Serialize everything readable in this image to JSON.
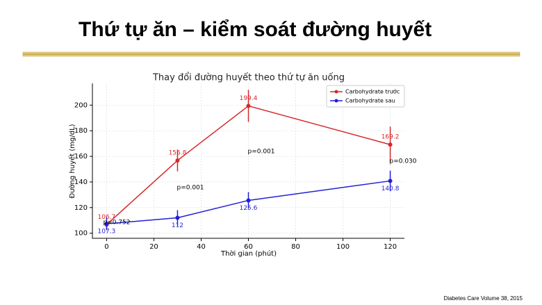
{
  "slide": {
    "title": "Thứ tự ăn – kiểm soát đường huyết",
    "source": "Diabetes Care Volume 38, 2015"
  },
  "chart_data": {
    "type": "line",
    "title": "Thay đổi đường huyết theo thứ tự ăn uống",
    "x_label": "Thời gian (phút)",
    "y_label": "Đường huyết (mg/dL)",
    "x": [
      0,
      30,
      60,
      120
    ],
    "series": [
      {
        "name": "Carbohydrate trước",
        "color": "#d62728",
        "values": [
          106.7,
          156.8,
          199.4,
          169.2
        ],
        "errors": [
          3,
          8.5,
          12.5,
          14
        ]
      },
      {
        "name": "Carbohydrate sau",
        "color": "#1f1fd6",
        "values": [
          107.3,
          112.0,
          125.6,
          140.8
        ],
        "errors": [
          5,
          6,
          6.5,
          8
        ]
      }
    ],
    "annotations": [
      "p=0.752",
      "p=0.001",
      "p=0.001",
      "p=0.030"
    ],
    "xlim": [
      -6,
      126
    ],
    "xticks": [
      0,
      20,
      40,
      60,
      80,
      100,
      120
    ],
    "ylim": [
      96,
      217
    ],
    "yticks": [
      100,
      120,
      140,
      160,
      180,
      200
    ],
    "grid": true,
    "legend": "upper right"
  }
}
